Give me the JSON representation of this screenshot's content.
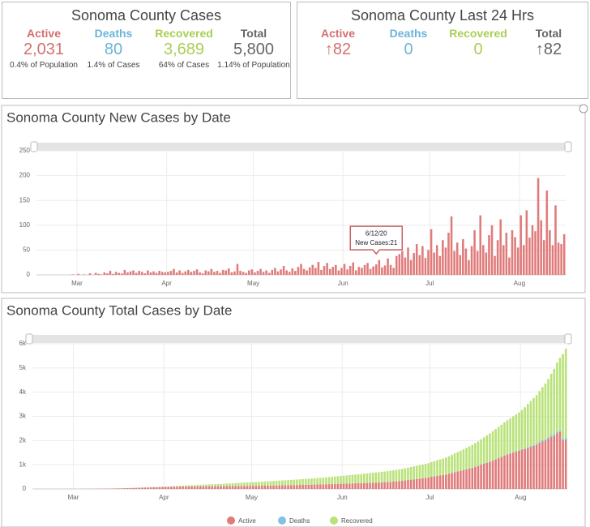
{
  "summary": {
    "title": "Sonoma County Cases",
    "items": [
      {
        "label": "Active",
        "value": "2,031",
        "note": "0.4% of Population",
        "color": "#d27070"
      },
      {
        "label": "Deaths",
        "value": "80",
        "note": "1.4% of Cases",
        "color": "#6ab4d8"
      },
      {
        "label": "Recovered",
        "value": "3,689",
        "note": "64% of Cases",
        "color": "#a8cf55"
      },
      {
        "label": "Total",
        "value": "5,800",
        "note": "1.14% of Population",
        "color": "#666666"
      }
    ]
  },
  "last24": {
    "title": "Sonoma County Last 24 Hrs",
    "items": [
      {
        "label": "Active",
        "value": "↑82",
        "color": "#d27070"
      },
      {
        "label": "Deaths",
        "value": "0",
        "color": "#6ab4d8"
      },
      {
        "label": "Recovered",
        "value": "0",
        "color": "#a8cf55"
      },
      {
        "label": "Total",
        "value": "↑82",
        "color": "#666666"
      }
    ]
  },
  "chart_data": [
    {
      "type": "bar",
      "title": "Sonoma County New Cases by Date",
      "color": "#e07b7b",
      "grid": true,
      "categories": [
        "2/16/20",
        "2/17/20",
        "2/18/20",
        "2/19/20",
        "2/20/20",
        "2/21/20",
        "2/22/20",
        "2/23/20",
        "2/24/20",
        "2/25/20",
        "2/26/20",
        "2/27/20",
        "2/28/20",
        "2/29/20",
        "3/1/20",
        "3/2/20",
        "3/3/20",
        "3/4/20",
        "3/5/20",
        "3/6/20",
        "3/7/20",
        "3/8/20",
        "3/9/20",
        "3/10/20",
        "3/11/20",
        "3/12/20",
        "3/13/20",
        "3/14/20",
        "3/15/20",
        "3/16/20",
        "3/17/20",
        "3/18/20",
        "3/19/20",
        "3/20/20",
        "3/21/20",
        "3/22/20",
        "3/23/20",
        "3/24/20",
        "3/25/20",
        "3/26/20",
        "3/27/20",
        "3/28/20",
        "3/29/20",
        "3/30/20",
        "3/31/20",
        "4/1/20",
        "4/2/20",
        "4/3/20",
        "4/4/20",
        "4/5/20",
        "4/6/20",
        "4/7/20",
        "4/8/20",
        "4/9/20",
        "4/10/20",
        "4/11/20",
        "4/12/20",
        "4/13/20",
        "4/14/20",
        "4/15/20",
        "4/16/20",
        "4/17/20",
        "4/18/20",
        "4/19/20",
        "4/20/20",
        "4/21/20",
        "4/22/20",
        "4/23/20",
        "4/24/20",
        "4/25/20",
        "4/26/20",
        "4/27/20",
        "4/28/20",
        "4/29/20",
        "4/30/20",
        "5/1/20",
        "5/2/20",
        "5/3/20",
        "5/4/20",
        "5/5/20",
        "5/6/20",
        "5/7/20",
        "5/8/20",
        "5/9/20",
        "5/10/20",
        "5/11/20",
        "5/12/20",
        "5/13/20",
        "5/14/20",
        "5/15/20",
        "5/16/20",
        "5/17/20",
        "5/18/20",
        "5/19/20",
        "5/20/20",
        "5/21/20",
        "5/22/20",
        "5/23/20",
        "5/24/20",
        "5/25/20",
        "5/26/20",
        "5/27/20",
        "5/28/20",
        "5/29/20",
        "5/30/20",
        "5/31/20",
        "6/1/20",
        "6/2/20",
        "6/3/20",
        "6/4/20",
        "6/5/20",
        "6/6/20",
        "6/7/20",
        "6/8/20",
        "6/9/20",
        "6/10/20",
        "6/11/20",
        "6/12/20",
        "6/13/20",
        "6/14/20",
        "6/15/20",
        "6/16/20",
        "6/17/20",
        "6/18/20",
        "6/19/20",
        "6/20/20",
        "6/21/20",
        "6/22/20",
        "6/23/20",
        "6/24/20",
        "6/25/20",
        "6/26/20",
        "6/27/20",
        "6/28/20",
        "6/29/20",
        "6/30/20",
        "7/1/20",
        "7/2/20",
        "7/3/20",
        "7/4/20",
        "7/5/20",
        "7/6/20",
        "7/7/20",
        "7/8/20",
        "7/9/20",
        "7/10/20",
        "7/11/20",
        "7/12/20",
        "7/13/20",
        "7/14/20",
        "7/15/20",
        "7/16/20",
        "7/17/20",
        "7/18/20",
        "7/19/20",
        "7/20/20",
        "7/21/20",
        "7/22/20",
        "7/23/20",
        "7/24/20",
        "7/25/20",
        "7/26/20",
        "7/27/20",
        "7/28/20",
        "7/29/20",
        "7/30/20",
        "7/31/20",
        "8/1/20",
        "8/2/20",
        "8/3/20",
        "8/4/20",
        "8/5/20",
        "8/6/20",
        "8/7/20",
        "8/8/20",
        "8/9/20",
        "8/10/20",
        "8/11/20",
        "8/12/20",
        "8/13/20",
        "8/14/20",
        "8/15/20",
        "8/16/20"
      ],
      "values": [
        0,
        0,
        0,
        0,
        0,
        0,
        0,
        0,
        0,
        0,
        0,
        0,
        1,
        0,
        2,
        0,
        1,
        0,
        3,
        0,
        4,
        2,
        1,
        5,
        3,
        8,
        2,
        6,
        4,
        3,
        10,
        5,
        7,
        9,
        4,
        8,
        6,
        3,
        9,
        5,
        7,
        4,
        8,
        6,
        5,
        6,
        8,
        12,
        5,
        9,
        4,
        7,
        10,
        6,
        8,
        11,
        5,
        3,
        9,
        7,
        12,
        6,
        8,
        4,
        10,
        9,
        13,
        5,
        7,
        22,
        8,
        6,
        4,
        9,
        11,
        5,
        8,
        12,
        6,
        9,
        4,
        10,
        14,
        7,
        11,
        18,
        9,
        6,
        13,
        8,
        16,
        22,
        12,
        9,
        15,
        20,
        14,
        26,
        10,
        18,
        24,
        12,
        16,
        20,
        9,
        14,
        22,
        11,
        18,
        25,
        9,
        16,
        14,
        20,
        24,
        12,
        17,
        21,
        30,
        15,
        19,
        33,
        20,
        14,
        38,
        42,
        48,
        35,
        55,
        30,
        44,
        62,
        40,
        58,
        34,
        50,
        92,
        45,
        60,
        38,
        70,
        55,
        85,
        118,
        48,
        65,
        40,
        72,
        53,
        30,
        58,
        90,
        48,
        120,
        60,
        45,
        80,
        100,
        38,
        70,
        112,
        60,
        85,
        35,
        90,
        76,
        55,
        120,
        60,
        130,
        75,
        100,
        88,
        195,
        110,
        70,
        170,
        90,
        60,
        140,
        65,
        62,
        82
      ],
      "ylim": [
        0,
        250
      ],
      "yticks": [
        0,
        50,
        100,
        150,
        200,
        250
      ],
      "xticks": [
        {
          "value": 14,
          "label": "Mar"
        },
        {
          "value": 45,
          "label": "Apr"
        },
        {
          "value": 75,
          "label": "May"
        },
        {
          "value": 106,
          "label": "Jun"
        },
        {
          "value": 136,
          "label": "Jul"
        },
        {
          "value": 167,
          "label": "Aug"
        }
      ],
      "tooltip": {
        "date": "6/12/20",
        "label": "New Cases:"
      }
    },
    {
      "type": "stacked_bar",
      "title": "Sonoma County Total Cases by Date",
      "grid": true,
      "legend": "bottom",
      "ylim": [
        0,
        6000
      ],
      "yticks": [
        0,
        {
          "value": 1000,
          "label": "1k"
        },
        {
          "value": 2000,
          "label": "2k"
        },
        {
          "value": 3000,
          "label": "3k"
        },
        {
          "value": 4000,
          "label": "4k"
        },
        {
          "value": 5000,
          "label": "5k"
        },
        {
          "value": 6000,
          "label": "6k"
        }
      ],
      "xticks": [
        {
          "value": 14,
          "label": "Mar"
        },
        {
          "value": 45,
          "label": "Apr"
        },
        {
          "value": 75,
          "label": "May"
        },
        {
          "value": 106,
          "label": "Jun"
        },
        {
          "value": 136,
          "label": "Jul"
        },
        {
          "value": 167,
          "label": "Aug"
        }
      ],
      "series": [
        {
          "name": "Active",
          "color": "#e07b7b",
          "values": [
            0,
            0,
            0,
            0,
            0,
            0,
            0,
            0,
            0,
            0,
            0,
            0,
            1,
            1,
            1,
            1,
            2,
            2,
            3,
            3,
            5,
            6,
            7,
            9,
            11,
            13,
            15,
            18,
            20,
            23,
            26,
            30,
            34,
            38,
            42,
            46,
            50,
            54,
            58,
            62,
            66,
            70,
            74,
            78,
            82,
            85,
            88,
            90,
            92,
            94,
            96,
            98,
            100,
            102,
            104,
            105,
            106,
            107,
            108,
            109,
            110,
            111,
            112,
            113,
            114,
            115,
            116,
            117,
            118,
            120,
            121,
            122,
            123,
            124,
            125,
            126,
            128,
            130,
            132,
            134,
            136,
            138,
            140,
            142,
            145,
            148,
            150,
            152,
            155,
            158,
            160,
            163,
            166,
            170,
            173,
            176,
            180,
            183,
            186,
            190,
            193,
            196,
            200,
            204,
            208,
            212,
            215,
            218,
            222,
            226,
            230,
            234,
            238,
            242,
            246,
            250,
            255,
            260,
            265,
            270,
            276,
            282,
            290,
            300,
            310,
            320,
            335,
            350,
            365,
            380,
            395,
            410,
            425,
            440,
            455,
            470,
            500,
            520,
            540,
            555,
            570,
            590,
            620,
            660,
            690,
            720,
            750,
            780,
            810,
            840,
            870,
            910,
            950,
            1000,
            1040,
            1080,
            1120,
            1170,
            1220,
            1270,
            1320,
            1370,
            1420,
            1460,
            1500,
            1540,
            1580,
            1620,
            1650,
            1700,
            1740,
            1780,
            1820,
            1900,
            1960,
            2000,
            2080,
            2150,
            2200,
            2300,
            2350,
            2000,
            2031
          ]
        },
        {
          "name": "Deaths",
          "color": "#7ec3e6",
          "values": [
            0,
            0,
            0,
            0,
            0,
            0,
            0,
            0,
            0,
            0,
            0,
            0,
            0,
            0,
            0,
            0,
            0,
            0,
            0,
            0,
            0,
            0,
            0,
            0,
            0,
            0,
            0,
            0,
            0,
            0,
            0,
            0,
            0,
            0,
            0,
            0,
            0,
            0,
            0,
            0,
            0,
            0,
            0,
            0,
            0,
            1,
            1,
            1,
            1,
            2,
            2,
            2,
            2,
            2,
            2,
            2,
            2,
            2,
            2,
            2,
            2,
            2,
            2,
            2,
            2,
            2,
            2,
            2,
            2,
            2,
            2,
            2,
            2,
            2,
            2,
            2,
            2,
            2,
            2,
            2,
            2,
            2,
            2,
            2,
            2,
            3,
            3,
            3,
            3,
            3,
            3,
            3,
            3,
            3,
            3,
            3,
            3,
            3,
            3,
            3,
            3,
            3,
            3,
            3,
            3,
            3,
            3,
            3,
            3,
            3,
            3,
            3,
            3,
            3,
            3,
            3,
            3,
            3,
            3,
            3,
            3,
            4,
            4,
            4,
            4,
            4,
            4,
            4,
            4,
            4,
            4,
            4,
            4,
            4,
            4,
            4,
            4,
            4,
            5,
            5,
            5,
            6,
            6,
            6,
            7,
            7,
            8,
            8,
            9,
            9,
            10,
            10,
            11,
            11,
            12,
            12,
            13,
            14,
            15,
            16,
            17,
            18,
            19,
            20,
            21,
            22,
            23,
            25,
            28,
            30,
            33,
            36,
            40,
            44,
            48,
            52,
            56,
            60,
            64,
            68,
            72,
            76,
            80
          ]
        },
        {
          "name": "Recovered",
          "color": "#b9e27a",
          "values": [
            0,
            0,
            0,
            0,
            0,
            0,
            0,
            0,
            0,
            0,
            0,
            0,
            0,
            0,
            0,
            0,
            0,
            0,
            0,
            0,
            0,
            0,
            0,
            0,
            0,
            0,
            0,
            0,
            0,
            1,
            1,
            1,
            2,
            2,
            2,
            3,
            3,
            3,
            4,
            4,
            5,
            5,
            6,
            7,
            8,
            10,
            14,
            18,
            22,
            26,
            30,
            34,
            38,
            42,
            46,
            50,
            55,
            60,
            65,
            70,
            75,
            80,
            85,
            90,
            95,
            100,
            105,
            110,
            115,
            120,
            125,
            130,
            135,
            140,
            145,
            150,
            155,
            160,
            165,
            170,
            175,
            180,
            185,
            190,
            195,
            200,
            205,
            210,
            215,
            220,
            225,
            230,
            235,
            240,
            245,
            250,
            256,
            262,
            268,
            274,
            280,
            288,
            296,
            304,
            312,
            320,
            328,
            336,
            344,
            352,
            360,
            368,
            376,
            384,
            392,
            400,
            408,
            416,
            424,
            432,
            440,
            448,
            456,
            464,
            472,
            480,
            490,
            500,
            510,
            520,
            530,
            540,
            550,
            560,
            575,
            590,
            605,
            620,
            640,
            660,
            680,
            700,
            720,
            745,
            770,
            795,
            820,
            850,
            880,
            910,
            940,
            970,
            1000,
            1040,
            1080,
            1120,
            1160,
            1200,
            1240,
            1280,
            1320,
            1360,
            1400,
            1440,
            1480,
            1520,
            1560,
            1620,
            1700,
            1780,
            1860,
            1940,
            2020,
            2100,
            2200,
            2300,
            2400,
            2550,
            2700,
            2850,
            3000,
            3500,
            3689
          ]
        }
      ]
    }
  ]
}
